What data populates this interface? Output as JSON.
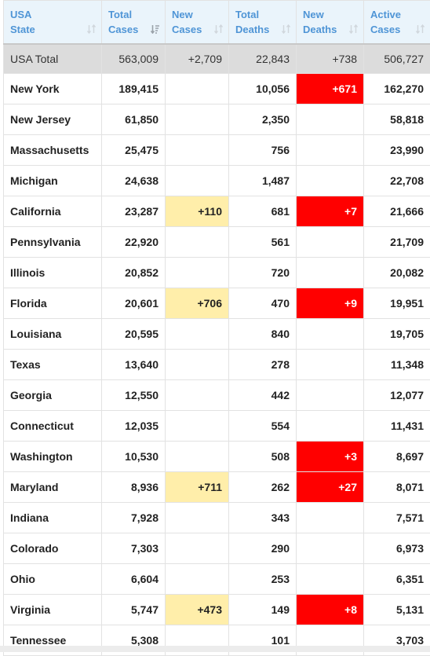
{
  "columns": [
    {
      "line1": "USA",
      "line2": "State"
    },
    {
      "line1": "Total",
      "line2": "Cases"
    },
    {
      "line1": "New",
      "line2": "Cases"
    },
    {
      "line1": "Total",
      "line2": "Deaths"
    },
    {
      "line1": "New",
      "line2": "Deaths"
    },
    {
      "line1": "Active",
      "line2": "Cases"
    }
  ],
  "total": {
    "state": "USA Total",
    "total_cases": "563,009",
    "new_cases": "+2,709",
    "total_deaths": "22,843",
    "new_deaths": "+738",
    "active_cases": "506,727"
  },
  "rows": [
    {
      "state": "New York",
      "total_cases": "189,415",
      "new_cases": "",
      "total_deaths": "10,056",
      "new_deaths": "+671",
      "active_cases": "162,270"
    },
    {
      "state": "New Jersey",
      "total_cases": "61,850",
      "new_cases": "",
      "total_deaths": "2,350",
      "new_deaths": "",
      "active_cases": "58,818"
    },
    {
      "state": "Massachusetts",
      "total_cases": "25,475",
      "new_cases": "",
      "total_deaths": "756",
      "new_deaths": "",
      "active_cases": "23,990"
    },
    {
      "state": "Michigan",
      "total_cases": "24,638",
      "new_cases": "",
      "total_deaths": "1,487",
      "new_deaths": "",
      "active_cases": "22,708"
    },
    {
      "state": "California",
      "total_cases": "23,287",
      "new_cases": "+110",
      "total_deaths": "681",
      "new_deaths": "+7",
      "active_cases": "21,666"
    },
    {
      "state": "Pennsylvania",
      "total_cases": "22,920",
      "new_cases": "",
      "total_deaths": "561",
      "new_deaths": "",
      "active_cases": "21,709"
    },
    {
      "state": "Illinois",
      "total_cases": "20,852",
      "new_cases": "",
      "total_deaths": "720",
      "new_deaths": "",
      "active_cases": "20,082"
    },
    {
      "state": "Florida",
      "total_cases": "20,601",
      "new_cases": "+706",
      "total_deaths": "470",
      "new_deaths": "+9",
      "active_cases": "19,951"
    },
    {
      "state": "Louisiana",
      "total_cases": "20,595",
      "new_cases": "",
      "total_deaths": "840",
      "new_deaths": "",
      "active_cases": "19,705"
    },
    {
      "state": "Texas",
      "total_cases": "13,640",
      "new_cases": "",
      "total_deaths": "278",
      "new_deaths": "",
      "active_cases": "11,348"
    },
    {
      "state": "Georgia",
      "total_cases": "12,550",
      "new_cases": "",
      "total_deaths": "442",
      "new_deaths": "",
      "active_cases": "12,077"
    },
    {
      "state": "Connecticut",
      "total_cases": "12,035",
      "new_cases": "",
      "total_deaths": "554",
      "new_deaths": "",
      "active_cases": "11,431"
    },
    {
      "state": "Washington",
      "total_cases": "10,530",
      "new_cases": "",
      "total_deaths": "508",
      "new_deaths": "+3",
      "active_cases": "8,697"
    },
    {
      "state": "Maryland",
      "total_cases": "8,936",
      "new_cases": "+711",
      "total_deaths": "262",
      "new_deaths": "+27",
      "active_cases": "8,071"
    },
    {
      "state": "Indiana",
      "total_cases": "7,928",
      "new_cases": "",
      "total_deaths": "343",
      "new_deaths": "",
      "active_cases": "7,571"
    },
    {
      "state": "Colorado",
      "total_cases": "7,303",
      "new_cases": "",
      "total_deaths": "290",
      "new_deaths": "",
      "active_cases": "6,973"
    },
    {
      "state": "Ohio",
      "total_cases": "6,604",
      "new_cases": "",
      "total_deaths": "253",
      "new_deaths": "",
      "active_cases": "6,351"
    },
    {
      "state": "Virginia",
      "total_cases": "5,747",
      "new_cases": "+473",
      "total_deaths": "149",
      "new_deaths": "+8",
      "active_cases": "5,131"
    },
    {
      "state": "Tennessee",
      "total_cases": "5,308",
      "new_cases": "",
      "total_deaths": "101",
      "new_deaths": "",
      "active_cases": "3,703"
    }
  ],
  "colors": {
    "header_text": "#4f95d6",
    "header_bg": "#eaf4fb",
    "new_cases_highlight": "#ffeeaa",
    "new_deaths_highlight": "#ff0000"
  },
  "icons": {
    "sort": "sort-arrows-icon",
    "active_sort": "sort-descending-icon"
  },
  "sorted_column": "Total Cases"
}
